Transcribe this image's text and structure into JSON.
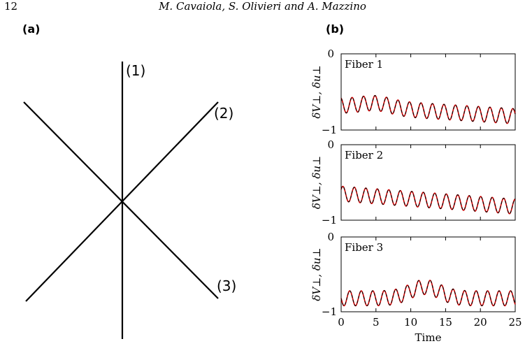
{
  "header": {
    "page_number": "12",
    "authors": "M. Cavaiola, S. Olivieri and A. Mazzino"
  },
  "panel_a": {
    "label": "(a)",
    "fiber_labels": [
      "(1)",
      "(2)",
      "(3)"
    ]
  },
  "panel_b": {
    "label": "(b)"
  },
  "chart_data": [
    {
      "type": "line",
      "annotation": "Fiber 1",
      "ylabel": "δV⊥, δu⊥",
      "xlabel": "",
      "xlim": [
        0,
        25
      ],
      "ylim": [
        -1,
        0
      ],
      "yticks": [
        "0",
        "−1"
      ],
      "x_ticks": [
        0,
        5,
        10,
        15,
        20,
        25
      ],
      "series": [
        {
          "color": "#cc0000",
          "style": "solid",
          "waveform": {
            "offset": [
              -0.68,
              -0.82
            ],
            "amplitude": 0.1,
            "period": 1.65,
            "bumps": [
              [
                5,
                0.06
              ]
            ],
            "phase": 0.3
          }
        },
        {
          "color": "#000000",
          "style": "dashed",
          "waveform": {
            "offset": [
              -0.68,
              -0.82
            ],
            "amplitude": 0.1,
            "period": 1.65,
            "bumps": [
              [
                5,
                0.06
              ]
            ],
            "phase": 0.3
          }
        }
      ]
    },
    {
      "type": "line",
      "annotation": "Fiber 2",
      "ylabel": "δV⊥, δu⊥",
      "xlabel": "",
      "xlim": [
        0,
        25
      ],
      "ylim": [
        -1,
        0
      ],
      "yticks": [
        "0",
        "−1"
      ],
      "x_ticks": [
        0,
        5,
        10,
        15,
        20,
        25
      ],
      "series": [
        {
          "color": "#cc0000",
          "style": "solid",
          "waveform": {
            "offset": [
              -0.65,
              -0.82
            ],
            "amplitude": 0.1,
            "period": 1.65,
            "bumps": [],
            "phase": 0.1
          }
        },
        {
          "color": "#000000",
          "style": "dashed",
          "waveform": {
            "offset": [
              -0.65,
              -0.82
            ],
            "amplitude": 0.1,
            "period": 1.65,
            "bumps": [],
            "phase": 0.1
          }
        }
      ]
    },
    {
      "type": "line",
      "annotation": "Fiber 3",
      "ylabel": "δV⊥, δu⊥",
      "xlabel": "Time",
      "xlim": [
        0,
        25
      ],
      "ylim": [
        -1,
        0
      ],
      "yticks": [
        "0",
        "−1"
      ],
      "x_ticks": [
        0,
        5,
        10,
        15,
        20,
        25
      ],
      "series": [
        {
          "color": "#cc0000",
          "style": "solid",
          "waveform": {
            "offset": [
              -0.82,
              -0.82
            ],
            "amplitude": 0.1,
            "period": 1.65,
            "bumps": [
              [
                12,
                0.15
              ]
            ],
            "phase": 0.5
          }
        },
        {
          "color": "#000000",
          "style": "dashed",
          "waveform": {
            "offset": [
              -0.82,
              -0.82
            ],
            "amplitude": 0.1,
            "period": 1.65,
            "bumps": [
              [
                12,
                0.15
              ]
            ],
            "phase": 0.5
          }
        }
      ]
    }
  ]
}
